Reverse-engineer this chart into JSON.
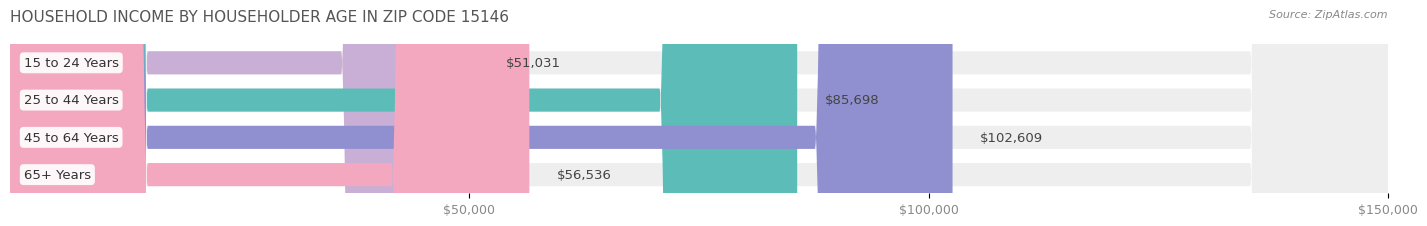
{
  "title": "HOUSEHOLD INCOME BY HOUSEHOLDER AGE IN ZIP CODE 15146",
  "source": "Source: ZipAtlas.com",
  "categories": [
    "15 to 24 Years",
    "25 to 44 Years",
    "45 to 64 Years",
    "65+ Years"
  ],
  "values": [
    51031,
    85698,
    102609,
    56536
  ],
  "bar_colors": [
    "#c9aed6",
    "#5bbcb8",
    "#9090d0",
    "#f4a8c0"
  ],
  "bar_bg_color": "#f0f0f0",
  "value_labels": [
    "$51,031",
    "$85,698",
    "$102,609",
    "$56,536"
  ],
  "xlim": [
    0,
    150000
  ],
  "xticks": [
    0,
    50000,
    100000,
    150000
  ],
  "xtick_labels": [
    "$50,000",
    "$100,000",
    "$150,000"
  ],
  "background_color": "#ffffff",
  "bar_height": 0.62,
  "title_fontsize": 11,
  "label_fontsize": 9.5,
  "tick_fontsize": 9
}
